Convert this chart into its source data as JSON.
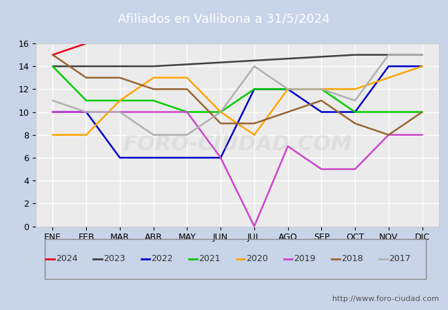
{
  "title": "Afiliados en Vallibona a 31/5/2024",
  "title_bg_color": "#5b7fc4",
  "title_text_color": "white",
  "ylim": [
    0,
    16
  ],
  "yticks": [
    0,
    2,
    4,
    6,
    8,
    10,
    12,
    14,
    16
  ],
  "months": [
    "ENE",
    "FEB",
    "MAR",
    "ABR",
    "MAY",
    "JUN",
    "JUL",
    "AGO",
    "SEP",
    "OCT",
    "NOV",
    "DIC"
  ],
  "url": "http://www.foro-ciudad.com",
  "series": {
    "2024": {
      "color": "#e8001c",
      "data": [
        15,
        16,
        null,
        null,
        null,
        null,
        null,
        null,
        null,
        null,
        null,
        null
      ]
    },
    "2023": {
      "color": "#404040",
      "data": [
        14,
        14,
        14,
        14,
        null,
        null,
        null,
        null,
        null,
        15,
        15,
        15
      ]
    },
    "2022": {
      "color": "#0000cd",
      "data": [
        10,
        10,
        6,
        6,
        6,
        6,
        12,
        12,
        10,
        10,
        14,
        14
      ]
    },
    "2021": {
      "color": "#00cc00",
      "data": [
        14,
        11,
        11,
        11,
        10,
        10,
        12,
        12,
        12,
        10,
        10,
        10
      ]
    },
    "2020": {
      "color": "#ffa500",
      "data": [
        8,
        8,
        11,
        13,
        13,
        10,
        8,
        12,
        12,
        12,
        13,
        14
      ]
    },
    "2019": {
      "color": "#cc44cc",
      "data": [
        10,
        10,
        10,
        10,
        10,
        6,
        0,
        7,
        5,
        5,
        8,
        8
      ]
    },
    "2018": {
      "color": "#996633",
      "data": [
        15,
        13,
        13,
        12,
        12,
        9,
        9,
        10,
        11,
        9,
        8,
        10
      ]
    },
    "2017": {
      "color": "#b0b0b0",
      "data": [
        11,
        10,
        10,
        8,
        8,
        10,
        14,
        12,
        12,
        11,
        15,
        15
      ]
    }
  },
  "legend_order": [
    "2024",
    "2023",
    "2022",
    "2021",
    "2020",
    "2019",
    "2018",
    "2017"
  ]
}
